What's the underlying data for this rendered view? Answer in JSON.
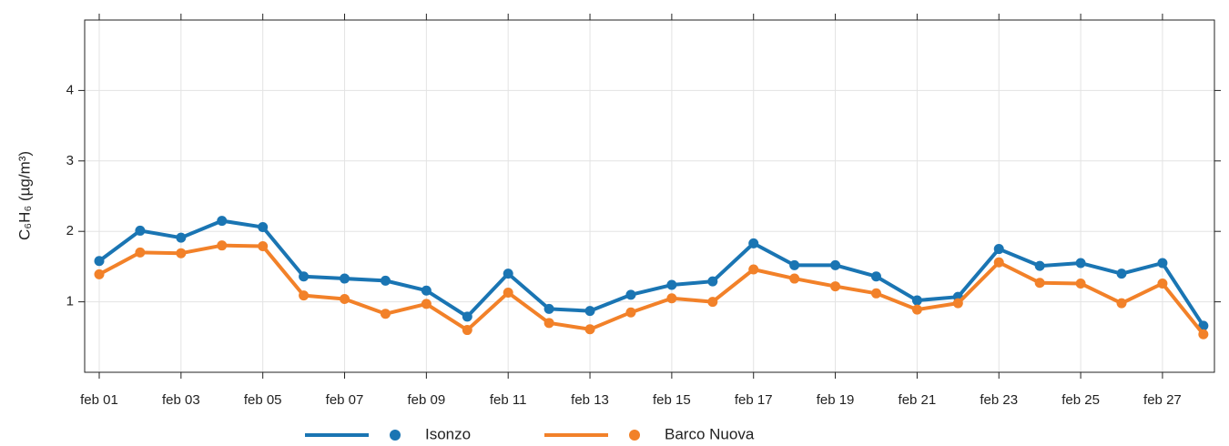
{
  "chart_data": {
    "type": "line",
    "y_label": "C₆H₆ (µg/m³)",
    "categories": [
      "feb 01",
      null,
      "feb 03",
      null,
      "feb 05",
      null,
      "feb 07",
      null,
      "feb 09",
      null,
      "feb 11",
      null,
      "feb 13",
      null,
      "feb 15",
      null,
      "feb 17",
      null,
      "feb 19",
      null,
      "feb 21",
      null,
      "feb 23",
      null,
      "feb 25",
      null,
      "feb 27",
      null
    ],
    "series": [
      {
        "name": "Isonzo",
        "color": "#1a75b3",
        "values": [
          1.58,
          2.01,
          1.91,
          2.15,
          2.06,
          1.36,
          1.33,
          1.3,
          1.16,
          0.79,
          1.4,
          0.9,
          0.87,
          1.1,
          1.24,
          1.29,
          1.83,
          1.52,
          1.52,
          1.36,
          1.02,
          1.07,
          1.75,
          1.51,
          1.55,
          1.4,
          1.55,
          0.66
        ]
      },
      {
        "name": "Barco Nuova",
        "color": "#f28129",
        "values": [
          1.39,
          1.7,
          1.69,
          1.8,
          1.79,
          1.09,
          1.04,
          0.83,
          0.97,
          0.6,
          1.13,
          0.7,
          0.61,
          0.85,
          1.05,
          1.0,
          1.46,
          1.33,
          1.22,
          1.12,
          0.89,
          0.98,
          1.56,
          1.27,
          1.26,
          0.98,
          1.26,
          0.54
        ]
      }
    ],
    "ylim": [
      0,
      5
    ],
    "yticks": [
      1,
      2,
      3,
      4
    ],
    "grid": true,
    "legend": "bottom"
  }
}
